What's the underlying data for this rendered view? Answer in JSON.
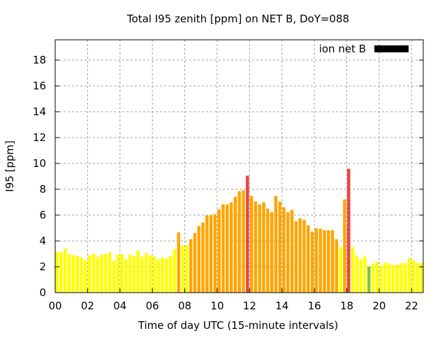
{
  "chart_data": {
    "type": "bar",
    "title": "Total I95 zenith [ppm] on NET B, DoY=088",
    "xlabel": "Time of day UTC (15-minute intervals)",
    "ylabel": "I95 [ppm]",
    "xlim": [
      0,
      22.72
    ],
    "ylim": [
      0,
      19.57
    ],
    "x_interval_hours": 0.25,
    "x_ticks": [
      0,
      2,
      4,
      6,
      8,
      10,
      12,
      14,
      16,
      18,
      20,
      22
    ],
    "x_tick_labels": [
      "00",
      "02",
      "04",
      "06",
      "08",
      "10",
      "12",
      "14",
      "16",
      "18",
      "20",
      "22"
    ],
    "y_ticks": [
      0,
      2,
      4,
      6,
      8,
      10,
      12,
      14,
      16,
      18
    ],
    "y_tick_labels": [
      "0",
      "2",
      "4",
      "6",
      "8",
      "10",
      "12",
      "14",
      "16",
      "18"
    ],
    "grid": true,
    "legend": {
      "label": "ion net B",
      "placement": "top-right",
      "color": "#000000"
    },
    "color_thresholds": [
      {
        "below": 2.05,
        "color": "#80c040"
      },
      {
        "below": 4.0,
        "color": "#ffff00"
      },
      {
        "below": 9.0,
        "color": "#ffa500"
      },
      {
        "below": 100,
        "color": "#ee4444"
      }
    ],
    "values": [
      3.15,
      3.15,
      3.42,
      2.99,
      2.88,
      2.83,
      2.72,
      2.5,
      2.88,
      2.99,
      2.77,
      2.94,
      2.99,
      3.1,
      2.45,
      2.94,
      2.99,
      2.56,
      2.94,
      2.83,
      3.26,
      2.77,
      3.05,
      2.88,
      2.83,
      2.56,
      2.72,
      2.61,
      2.83,
      3.37,
      4.67,
      3.66,
      3.69,
      4.13,
      4.61,
      5.15,
      5.42,
      5.96,
      6.02,
      6.07,
      6.45,
      6.83,
      6.83,
      6.99,
      7.42,
      7.86,
      7.91,
      9.05,
      7.48,
      7.05,
      6.83,
      6.99,
      6.5,
      6.23,
      7.48,
      7.05,
      6.61,
      6.23,
      6.4,
      5.53,
      5.75,
      5.64,
      5.21,
      4.72,
      4.99,
      4.94,
      4.83,
      4.83,
      4.83,
      4.13,
      3.53,
      7.21,
      9.59,
      3.53,
      2.88,
      2.56,
      2.77,
      2.02,
      2.23,
      2.4,
      2.07,
      2.34,
      2.23,
      2.13,
      2.18,
      2.29,
      2.29,
      2.67,
      2.5,
      2.29,
      2.29,
      2.4
    ]
  }
}
